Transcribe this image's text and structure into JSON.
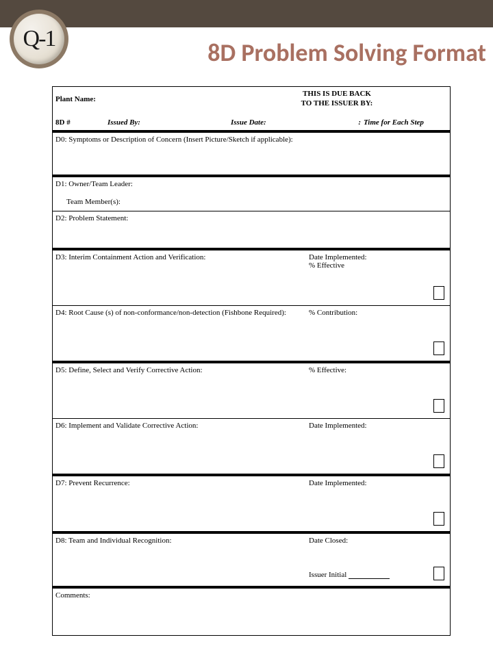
{
  "logo": {
    "text": "Q-1"
  },
  "title": "8D Problem Solving Format",
  "header": {
    "plant_label": "Plant Name:",
    "due_line1": "THIS IS DUE BACK",
    "due_line2": "TO THE ISSUER BY:",
    "eightd_label": "8D #",
    "issued_by_label": "Issued By:",
    "issue_date_label": "Issue Date:",
    "colon": ":",
    "time_label": "Time for Each Step"
  },
  "d0": "D0: Symptoms or Description of Concern (Insert Picture/Sketch if applicable):",
  "d1": {
    "owner": "D1: Owner/Team Leader:",
    "members": "Team Member(s):"
  },
  "d2": "D2: Problem Statement:",
  "d3": {
    "left": "D3: Interim Containment Action and Verification:",
    "right1": "Date Implemented:",
    "right2": "% Effective"
  },
  "d4": {
    "left": "D4: Root Cause (s) of non-conformance/non-detection (Fishbone Required):",
    "right": "% Contribution:"
  },
  "d5": {
    "left": "D5: Define, Select and Verify Corrective Action:",
    "right": "% Effective:"
  },
  "d6": {
    "left": "D6: Implement and Validate Corrective Action:",
    "right": "Date Implemented:"
  },
  "d7": {
    "left": "D7: Prevent Recurrence:",
    "right": "Date Implemented:"
  },
  "d8": {
    "left": "D8: Team and Individual Recognition:",
    "right": "Date Closed:",
    "issuer": "Issuer Initial "
  },
  "comments": "Comments:"
}
